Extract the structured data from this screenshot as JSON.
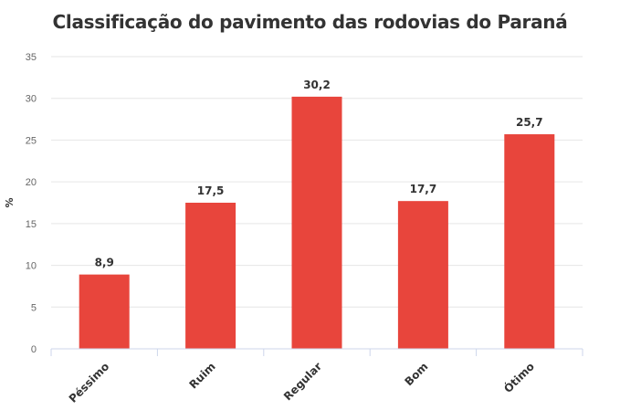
{
  "chart_data": {
    "type": "bar",
    "title": "Classificação do pavimento das rodovias do Paraná",
    "xlabel": "",
    "ylabel": "%",
    "categories": [
      "Péssimo",
      "Ruim",
      "Regular",
      "Bom",
      "Ótimo"
    ],
    "values": [
      8.9,
      17.5,
      30.2,
      17.7,
      25.7
    ],
    "data_labels": [
      "8,9",
      "17,5",
      "30,2",
      "17,7",
      "25,7"
    ],
    "ylim": [
      0,
      35
    ],
    "yticks": [
      0,
      5,
      10,
      15,
      20,
      25,
      30,
      35
    ],
    "grid": true,
    "legend": "none",
    "bar_color": "#e8453c"
  }
}
